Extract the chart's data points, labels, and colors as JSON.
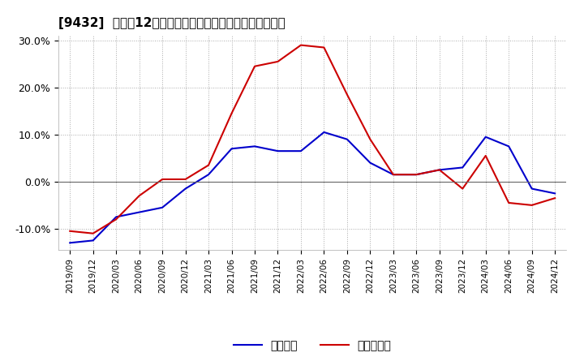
{
  "title": "[9432]  利益の12か月移動合計の対前年同期増減率の推移",
  "ylim": [
    -14.5,
    31
  ],
  "yticks": [
    -10.0,
    0.0,
    10.0,
    20.0,
    30.0
  ],
  "ytick_labels": [
    "-10.0%",
    "0.0%",
    "10.0%",
    "20.0%",
    "30.0%"
  ],
  "legend_labels": [
    "経常利益",
    "当期純利益"
  ],
  "line_colors": [
    "#0000cc",
    "#cc0000"
  ],
  "background_color": "#ffffff",
  "grid_color": "#aaaaaa",
  "x_labels": [
    "2019/09",
    "2019/12",
    "2020/03",
    "2020/06",
    "2020/09",
    "2020/12",
    "2021/03",
    "2021/06",
    "2021/09",
    "2021/12",
    "2022/03",
    "2022/06",
    "2022/09",
    "2022/12",
    "2023/03",
    "2023/06",
    "2023/09",
    "2023/12",
    "2024/03",
    "2024/06",
    "2024/09",
    "2024/12"
  ],
  "series_operating": [
    -13.0,
    -12.5,
    -7.5,
    -6.5,
    -5.5,
    -1.5,
    1.5,
    7.0,
    7.5,
    6.5,
    6.5,
    10.5,
    9.0,
    4.0,
    1.5,
    1.5,
    2.5,
    3.0,
    9.5,
    7.5,
    -1.5,
    -2.5
  ],
  "series_net": [
    -10.5,
    -11.0,
    -8.0,
    -3.0,
    0.5,
    0.5,
    3.5,
    14.5,
    24.5,
    25.5,
    29.0,
    28.5,
    18.5,
    9.0,
    1.5,
    1.5,
    2.5,
    -1.5,
    5.5,
    -4.5,
    -5.0,
    -3.5
  ]
}
